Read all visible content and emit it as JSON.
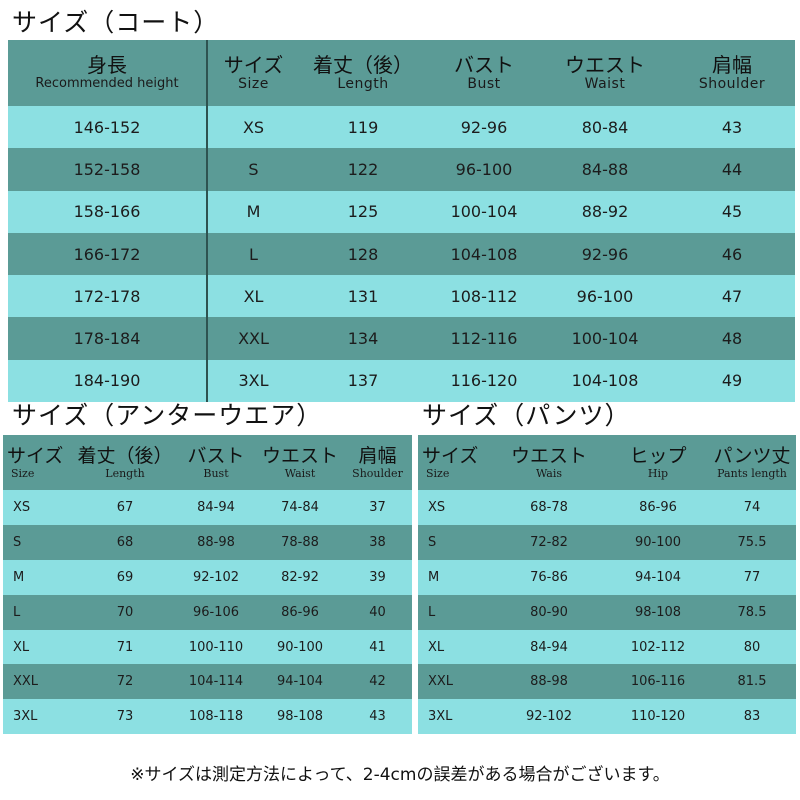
{
  "coat": {
    "title": "サイズ（コート）",
    "headers": [
      {
        "jp": "身長",
        "en": "Recommended height"
      },
      {
        "jp": "サイズ",
        "en": "Size"
      },
      {
        "jp": "着丈（後）",
        "en": "Length"
      },
      {
        "jp": "バスト",
        "en": "Bust"
      },
      {
        "jp": "ウエスト",
        "en": "Waist"
      },
      {
        "jp": "肩幅",
        "en": "Shoulder"
      }
    ],
    "rows": [
      [
        "146-152",
        "XS",
        "119",
        "92-96",
        "80-84",
        "43"
      ],
      [
        "152-158",
        "S",
        "122",
        "96-100",
        "84-88",
        "44"
      ],
      [
        "158-166",
        "M",
        "125",
        "100-104",
        "88-92",
        "45"
      ],
      [
        "166-172",
        "L",
        "128",
        "104-108",
        "92-96",
        "46"
      ],
      [
        "172-178",
        "XL",
        "131",
        "108-112",
        "96-100",
        "47"
      ],
      [
        "178-184",
        "XXL",
        "134",
        "112-116",
        "100-104",
        "48"
      ],
      [
        "184-190",
        "3XL",
        "137",
        "116-120",
        "104-108",
        "49"
      ]
    ]
  },
  "undershirt": {
    "title": "サイズ（アンターウエア）",
    "headers": [
      {
        "jp": "サイズ",
        "en": "Size"
      },
      {
        "jp": "着丈（後）",
        "en": "Length"
      },
      {
        "jp": "バスト",
        "en": "Bust"
      },
      {
        "jp": "ウエスト",
        "en": "Waist"
      },
      {
        "jp": "肩幅",
        "en": "Shoulder"
      }
    ],
    "rows": [
      [
        "XS",
        "67",
        "84-94",
        "74-84",
        "37"
      ],
      [
        "S",
        "68",
        "88-98",
        "78-88",
        "38"
      ],
      [
        "M",
        "69",
        "92-102",
        "82-92",
        "39"
      ],
      [
        "L",
        "70",
        "96-106",
        "86-96",
        "40"
      ],
      [
        "XL",
        "71",
        "100-110",
        "90-100",
        "41"
      ],
      [
        "XXL",
        "72",
        "104-114",
        "94-104",
        "42"
      ],
      [
        "3XL",
        "73",
        "108-118",
        "98-108",
        "43"
      ]
    ]
  },
  "pants": {
    "title": "サイズ（パンツ）",
    "headers": [
      {
        "jp": "サイズ",
        "en": "Size"
      },
      {
        "jp": "ウエスト",
        "en": "Wais"
      },
      {
        "jp": "ヒップ",
        "en": "Hip"
      },
      {
        "jp": "パンツ丈",
        "en": "Pants length"
      }
    ],
    "rows": [
      [
        "XS",
        "68-78",
        "86-96",
        "74"
      ],
      [
        "S",
        "72-82",
        "90-100",
        "75.5"
      ],
      [
        "M",
        "76-86",
        "94-104",
        "77"
      ],
      [
        "L",
        "80-90",
        "98-108",
        "78.5"
      ],
      [
        "XL",
        "84-94",
        "102-112",
        "80"
      ],
      [
        "XXL",
        "88-98",
        "106-116",
        "81.5"
      ],
      [
        "3XL",
        "92-102",
        "110-120",
        "83"
      ]
    ]
  },
  "footnote": "※サイズは測定方法によって、2-4cmの誤差がある場合がございます。",
  "colors": {
    "header_bg": "#5b9b96",
    "row_light": "#8ce0e2",
    "row_dark": "#5b9b96"
  }
}
